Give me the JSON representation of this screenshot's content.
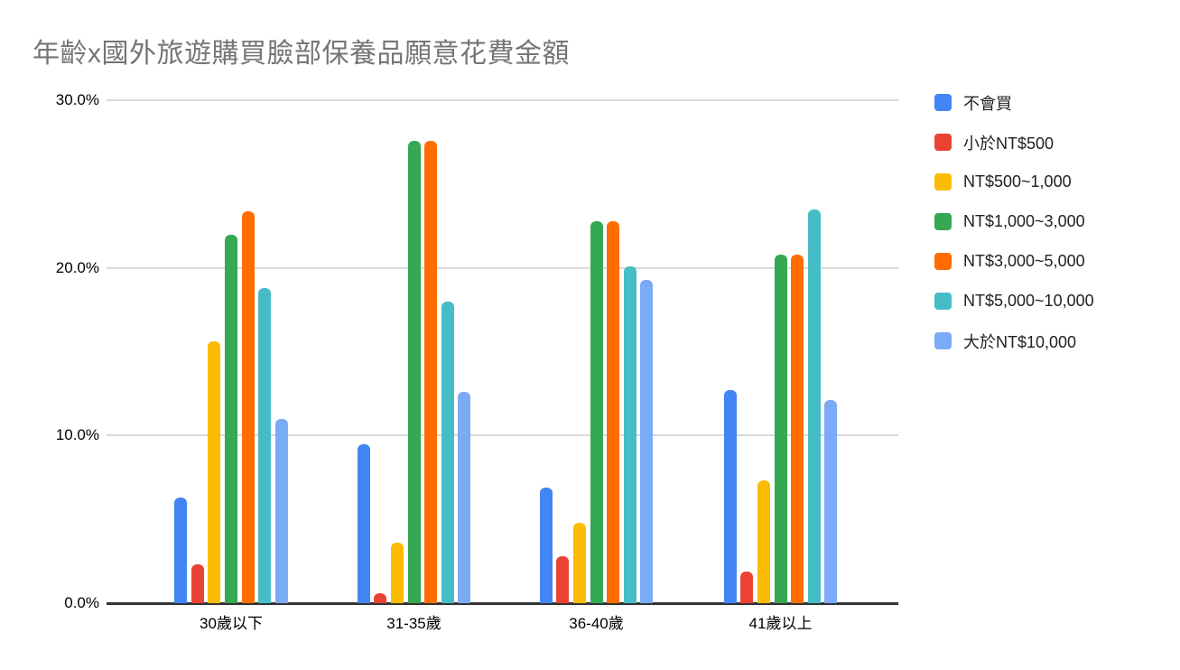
{
  "chart_data": {
    "type": "bar",
    "title": "年齡x國外旅遊購買臉部保養品願意花費金額",
    "title_color": "#757575",
    "xlabel": "",
    "ylabel": "",
    "ylim": [
      0,
      30
    ],
    "y_ticks": [
      {
        "value": 0,
        "label": "0.0%"
      },
      {
        "value": 10,
        "label": "10.0%"
      },
      {
        "value": 20,
        "label": "20.0%"
      },
      {
        "value": 30,
        "label": "30.0%"
      }
    ],
    "grid": true,
    "legend_position": "right",
    "value_unit": "percent",
    "gridline_color": "#d9d9d9",
    "axis_color": "#333333",
    "categories": [
      "30歲以下",
      "31-35歲",
      "36-40歲",
      "41歲以上"
    ],
    "series": [
      {
        "name": "不會買",
        "color": "#4285F4",
        "values": [
          6.3,
          9.5,
          6.9,
          12.7
        ]
      },
      {
        "name": "小於NT$500",
        "color": "#EA4335",
        "values": [
          2.3,
          0.6,
          2.8,
          1.9
        ]
      },
      {
        "name": "NT$500~1,000",
        "color": "#FBBC04",
        "values": [
          15.6,
          3.6,
          4.8,
          7.3
        ]
      },
      {
        "name": "NT$1,000~3,000",
        "color": "#34A853",
        "values": [
          22.0,
          27.6,
          22.8,
          20.8
        ]
      },
      {
        "name": "NT$3,000~5,000",
        "color": "#FF6D01",
        "values": [
          23.4,
          27.6,
          22.8,
          20.8
        ]
      },
      {
        "name": "NT$5,000~10,000",
        "color": "#46BDC6",
        "values": [
          18.8,
          18.0,
          20.1,
          23.5
        ]
      },
      {
        "name": "大於NT$10,000",
        "color": "#7BAAF7",
        "values": [
          11.0,
          12.6,
          19.3,
          12.1
        ]
      }
    ]
  }
}
